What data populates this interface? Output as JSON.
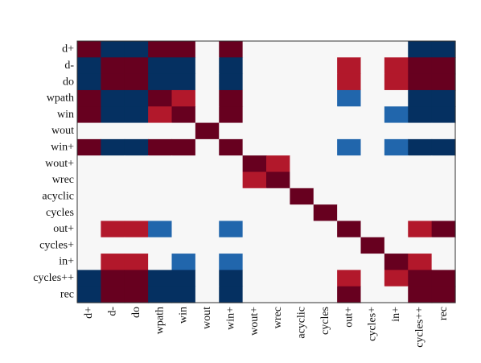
{
  "chart_data": {
    "type": "heatmap",
    "title": "",
    "xlabel": "",
    "ylabel": "",
    "legend": "none",
    "grid": false,
    "row_labels": [
      "d+",
      "d-",
      "do",
      "wpath",
      "win",
      "wout",
      "win+",
      "wout+",
      "wrec",
      "acyclic",
      "cycles",
      "out+",
      "cycles+",
      "in+",
      "cycles++",
      "rec"
    ],
    "col_labels": [
      "d+",
      "d-",
      "do",
      "wpath",
      "win",
      "wout",
      "win+",
      "wout+",
      "wrec",
      "acyclic",
      "cycles",
      "out+",
      "cycles+",
      "in+",
      "cycles++",
      "rec"
    ],
    "color_key": {
      "2": "#67001f",
      "1": "#b2182b",
      "0": "#f7f7f7",
      "-1": "#2166ac",
      "-2": "#053061"
    },
    "values": [
      [
        2,
        -2,
        -2,
        2,
        2,
        0,
        2,
        0,
        0,
        0,
        0,
        0,
        0,
        0,
        -2,
        -2
      ],
      [
        -2,
        2,
        2,
        -2,
        -2,
        0,
        -2,
        0,
        0,
        0,
        0,
        1,
        0,
        1,
        2,
        2
      ],
      [
        -2,
        2,
        2,
        -2,
        -2,
        0,
        -2,
        0,
        0,
        0,
        0,
        1,
        0,
        1,
        2,
        2
      ],
      [
        2,
        -2,
        -2,
        2,
        1,
        0,
        2,
        0,
        0,
        0,
        0,
        -1,
        0,
        0,
        -2,
        -2
      ],
      [
        2,
        -2,
        -2,
        1,
        2,
        0,
        2,
        0,
        0,
        0,
        0,
        0,
        0,
        -1,
        -2,
        -2
      ],
      [
        0,
        0,
        0,
        0,
        0,
        2,
        0,
        0,
        0,
        0,
        0,
        0,
        0,
        0,
        0,
        0
      ],
      [
        2,
        -2,
        -2,
        2,
        2,
        0,
        2,
        0,
        0,
        0,
        0,
        -1,
        0,
        -1,
        -2,
        -2
      ],
      [
        0,
        0,
        0,
        0,
        0,
        0,
        0,
        2,
        1,
        0,
        0,
        0,
        0,
        0,
        0,
        0
      ],
      [
        0,
        0,
        0,
        0,
        0,
        0,
        0,
        1,
        2,
        0,
        0,
        0,
        0,
        0,
        0,
        0
      ],
      [
        0,
        0,
        0,
        0,
        0,
        0,
        0,
        0,
        0,
        2,
        0,
        0,
        0,
        0,
        0,
        0
      ],
      [
        0,
        0,
        0,
        0,
        0,
        0,
        0,
        0,
        0,
        0,
        2,
        0,
        0,
        0,
        0,
        0
      ],
      [
        0,
        1,
        1,
        -1,
        0,
        0,
        -1,
        0,
        0,
        0,
        0,
        2,
        0,
        0,
        1,
        2
      ],
      [
        0,
        0,
        0,
        0,
        0,
        0,
        0,
        0,
        0,
        0,
        0,
        0,
        2,
        0,
        0,
        0
      ],
      [
        0,
        1,
        1,
        0,
        -1,
        0,
        -1,
        0,
        0,
        0,
        0,
        0,
        0,
        2,
        1,
        0
      ],
      [
        -2,
        2,
        2,
        -2,
        -2,
        0,
        -2,
        0,
        0,
        0,
        0,
        1,
        0,
        1,
        2,
        2
      ],
      [
        -2,
        2,
        2,
        -2,
        -2,
        0,
        -2,
        0,
        0,
        0,
        0,
        2,
        0,
        0,
        2,
        2
      ]
    ]
  }
}
